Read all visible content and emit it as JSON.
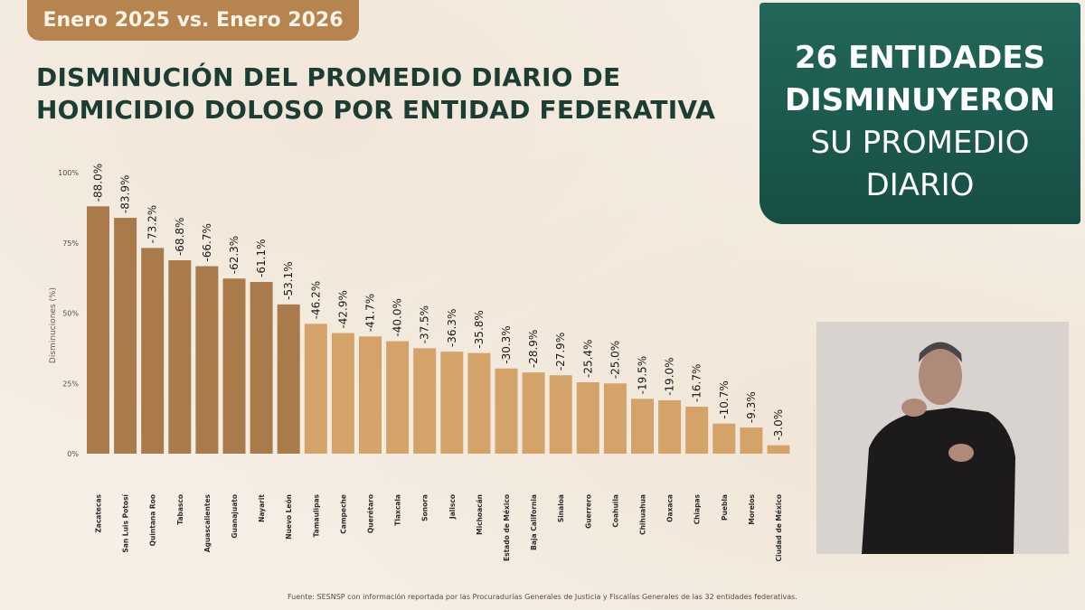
{
  "header": {
    "period": "Enero 2025 vs. Enero 2026",
    "title_line1": "DISMINUCIÓN DEL PROMEDIO DIARIO DE",
    "title_line2": "HOMICIDIO DOLOSO POR ENTIDAD FEDERATIVA"
  },
  "callout": {
    "line1": "26 ENTIDADES",
    "line2": "DISMINUYERON",
    "line3": "SU PROMEDIO",
    "line4": "DIARIO"
  },
  "source": "Fuente: SESNSP con información reportada por las Procuradurías Generales de Justicia y Fiscalías Generales de las 32 entidades federativas.",
  "colors": {
    "bar_dark": "#a97a4a",
    "bar_light": "#d4a36a",
    "callout_bg": "#1f5c50",
    "pill": "#b5844f",
    "title": "#1c3d33"
  },
  "chart_data": {
    "type": "bar",
    "ylabel": "Disminuciones (%)",
    "ylim": [
      0,
      100
    ],
    "yticks": [
      "0%",
      "25%",
      "50%",
      "75%",
      "100%"
    ],
    "grid": false,
    "categories": [
      "Zacatecas",
      "San Luis Potosí",
      "Quintana Roo",
      "Tabasco",
      "Aguascalientes",
      "Guanajuato",
      "Nayarit",
      "Nuevo León",
      "Tamaulipas",
      "Campeche",
      "Querétaro",
      "Tlaxcala",
      "Sonora",
      "Jalisco",
      "Michoacán",
      "Estado de México",
      "Baja California",
      "Sinaloa",
      "Guerrero",
      "Coahuila",
      "Chihuahua",
      "Oaxaca",
      "Chiapas",
      "Puebla",
      "Morelos",
      "Ciudad de México"
    ],
    "values": [
      88.0,
      83.9,
      73.2,
      68.8,
      66.7,
      62.3,
      61.1,
      53.1,
      46.2,
      42.9,
      41.7,
      40.0,
      37.5,
      36.3,
      35.8,
      30.3,
      28.9,
      27.9,
      25.4,
      25.0,
      19.5,
      19.0,
      16.7,
      10.7,
      9.3,
      3.0
    ],
    "labels": [
      "-88.0%",
      "-83.9%",
      "-73.2%",
      "-68.8%",
      "-66.7%",
      "-62.3%",
      "-61.1%",
      "-53.1%",
      "-46.2%",
      "-42.9%",
      "-41.7%",
      "-40.0%",
      "-37.5%",
      "-36.3%",
      "-35.8%",
      "-30.3%",
      "-28.9%",
      "-27.9%",
      "-25.4%",
      "-25.0%",
      "-19.5%",
      "-19.0%",
      "-16.7%",
      "-10.7%",
      "-9.3%",
      "-3.0%"
    ],
    "dark_count": 8
  }
}
